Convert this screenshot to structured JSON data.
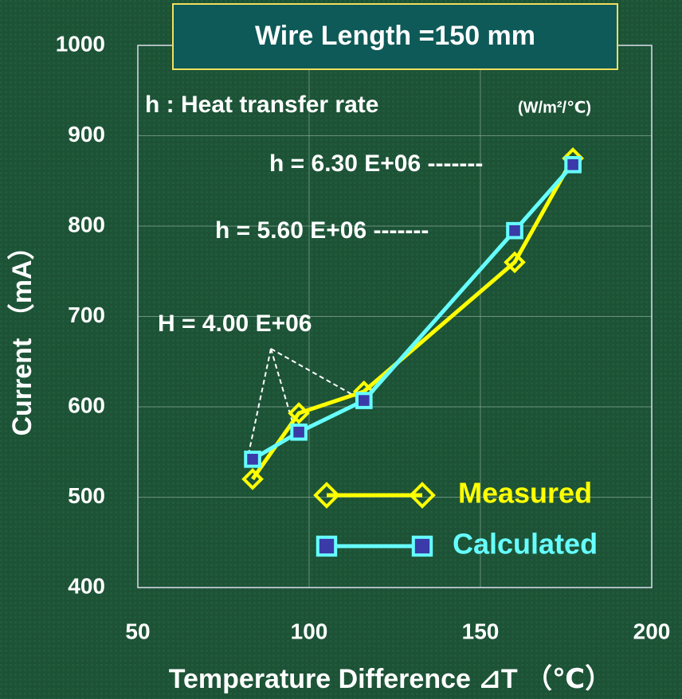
{
  "chart_data": {
    "type": "line",
    "title": "Wire Length =150 mm",
    "subtitle": "h : Heat transfer rate",
    "annotations": [
      "(W/m²/℃)",
      "h = 6.30 E+06 -------",
      "h = 5.60 E+06 -------",
      "H = 4.00 E+06"
    ],
    "x_label": "Temperature Difference ⊿T （℃）",
    "y_label": "Current （mA）",
    "x": [
      83.5,
      97,
      116,
      160,
      177
    ],
    "series": [
      {
        "name": "Measured",
        "color": "#ffff00",
        "values": [
          520,
          593,
          617,
          760,
          875
        ]
      },
      {
        "name": "Calculated",
        "color": "#66ffff",
        "values": [
          542,
          572,
          607,
          795,
          868
        ]
      }
    ],
    "xlim": [
      50,
      200
    ],
    "xticks": [
      50,
      100,
      150,
      200
    ],
    "ylim": [
      400,
      1000
    ],
    "yticks": [
      400,
      500,
      600,
      700,
      800,
      900,
      1000
    ],
    "grid": true,
    "legend": "lower right"
  }
}
